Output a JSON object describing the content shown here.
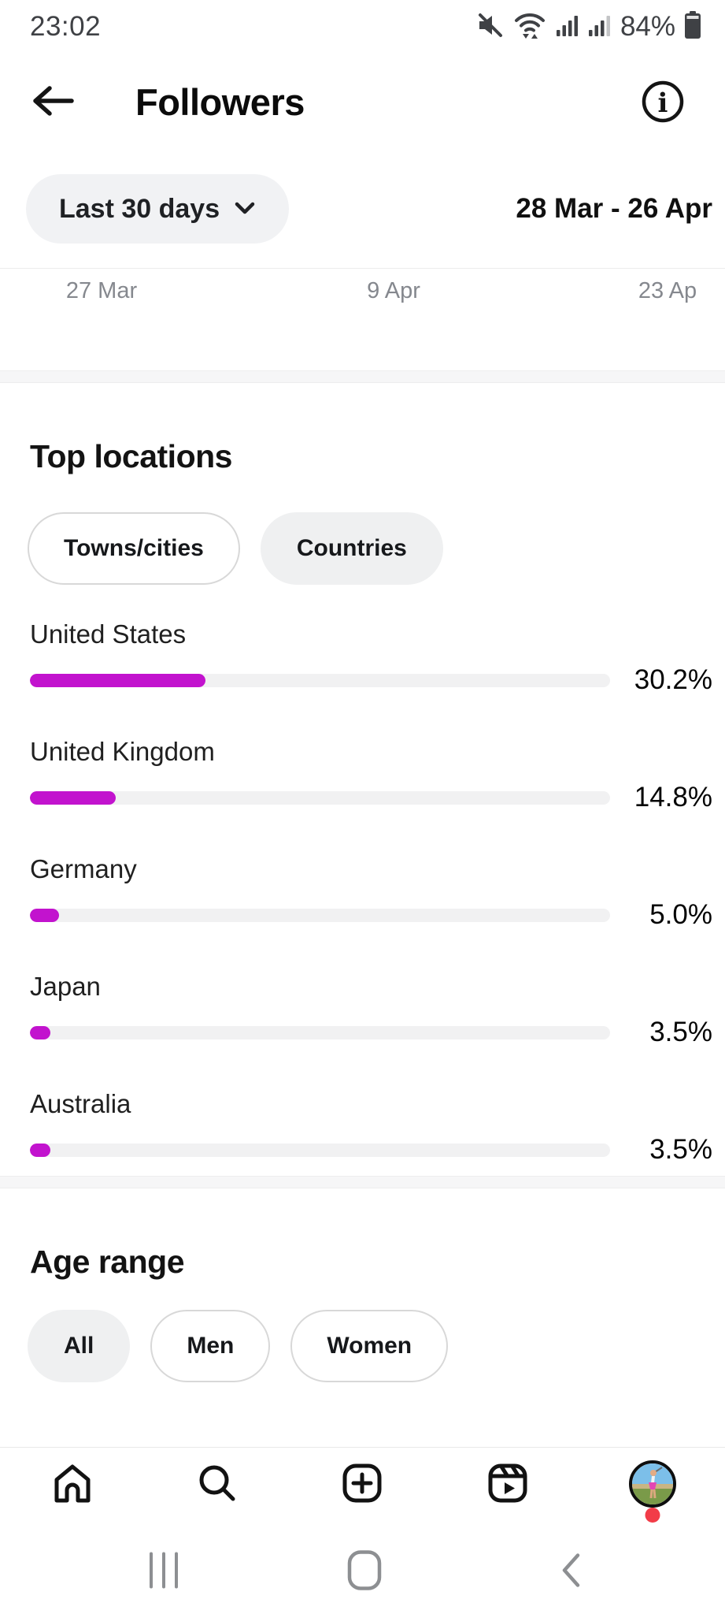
{
  "status_bar": {
    "time": "23:02",
    "battery_level": "84%",
    "icons": [
      "mute-icon",
      "wifi-icon",
      "signal-icon",
      "signal-secondary-icon",
      "battery-icon"
    ]
  },
  "header": {
    "title": "Followers",
    "icons": [
      "back-arrow-icon",
      "info-icon"
    ]
  },
  "filter": {
    "period": "Last 30 days",
    "date_range": "28 Mar - 26 Apr"
  },
  "chart": {
    "x_labels": [
      "27 Mar",
      "9 Apr",
      "23 Ap"
    ]
  },
  "top_locations": {
    "title": "Top locations",
    "tabs": [
      {
        "label": "Towns/cities",
        "selected": false
      },
      {
        "label": "Countries",
        "selected": true
      }
    ],
    "items": [
      {
        "name": "United States",
        "percent": "30.2%",
        "value": 30.2
      },
      {
        "name": "United Kingdom",
        "percent": "14.8%",
        "value": 14.8
      },
      {
        "name": "Germany",
        "percent": "5.0%",
        "value": 5.0
      },
      {
        "name": "Japan",
        "percent": "3.5%",
        "value": 3.5
      },
      {
        "name": "Australia",
        "percent": "3.5%",
        "value": 3.5
      }
    ]
  },
  "age_range": {
    "title": "Age range",
    "tabs": [
      {
        "label": "All",
        "selected": true
      },
      {
        "label": "Men",
        "selected": false
      },
      {
        "label": "Women",
        "selected": false
      }
    ]
  },
  "bottom_nav": {
    "icons": [
      "home-icon",
      "search-icon",
      "create-icon",
      "reels-icon",
      "profile-avatar"
    ]
  },
  "system_nav": {
    "icons": [
      "recents-icon",
      "home-pill-icon",
      "back-icon"
    ]
  },
  "colors": {
    "accent_bar": "#c213ce",
    "bar_track": "#f1f1f2",
    "notification_dot": "#f23c48"
  }
}
